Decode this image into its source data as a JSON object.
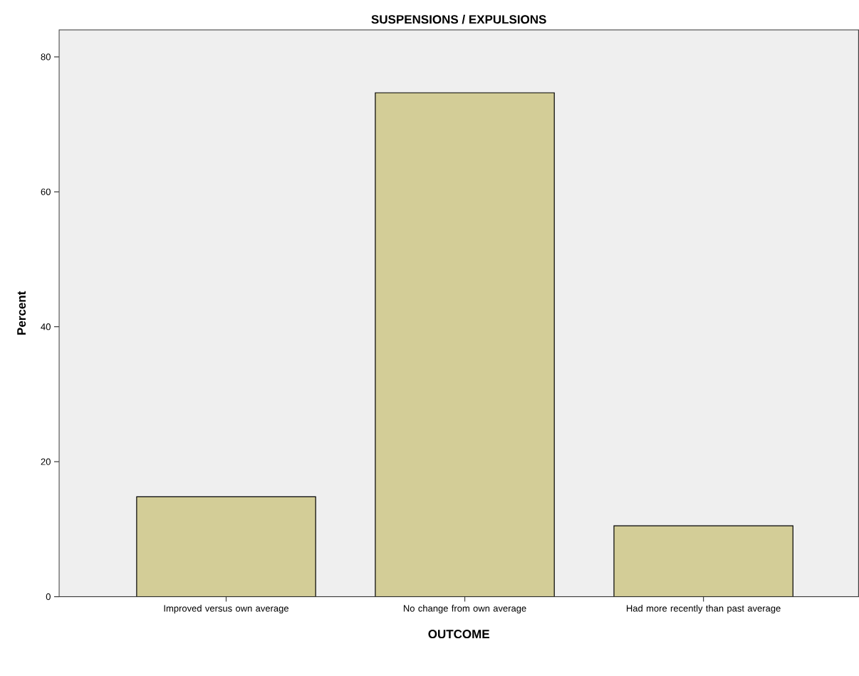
{
  "chart_data": {
    "type": "bar",
    "title": "SUSPENSIONS / EXPULSIONS",
    "xlabel": "OUTCOME",
    "ylabel": "Percent",
    "categories": [
      "Improved versus own average",
      "No change from own average",
      "Had more recently than past average"
    ],
    "values": [
      14.8,
      74.7,
      10.5
    ],
    "color": "#d3cd97",
    "ylim": [
      0,
      84
    ],
    "yticks": [
      0,
      20,
      40,
      60,
      80
    ]
  }
}
